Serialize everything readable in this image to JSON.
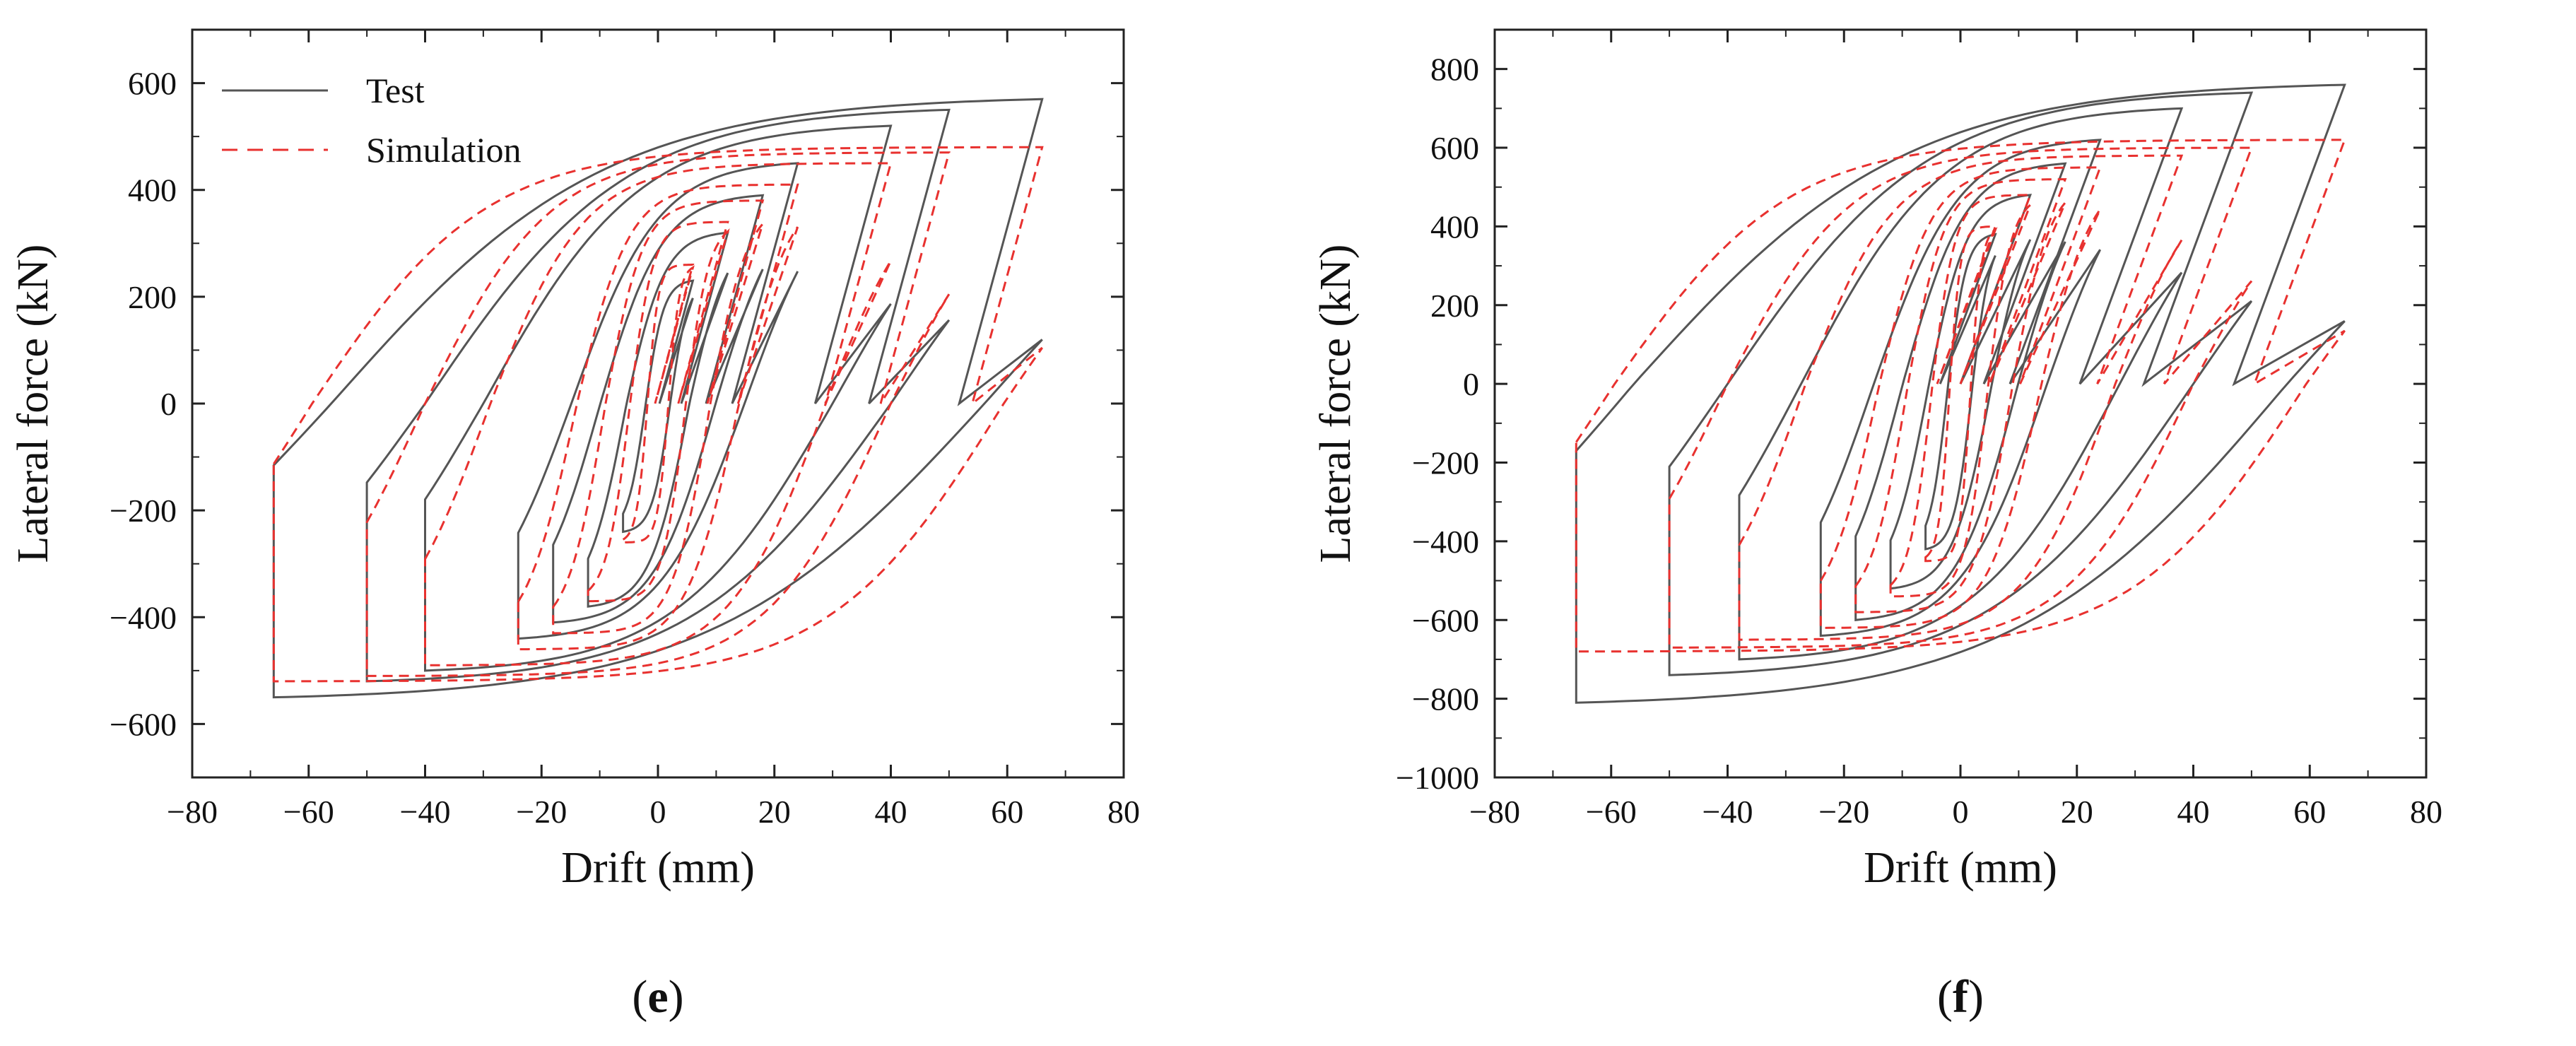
{
  "chart_data": [
    {
      "panel": "(e)",
      "type": "line",
      "xlabel": "Drift (mm)",
      "ylabel": "Lateral force (kN)",
      "xlim": [
        -80,
        80
      ],
      "ylim": [
        -700,
        700
      ],
      "xticks": [
        -80,
        -60,
        -40,
        -20,
        0,
        20,
        40,
        60,
        80
      ],
      "yticks": [
        -600,
        -400,
        -200,
        0,
        200,
        400,
        600
      ],
      "ytick_labels": [
        "−600",
        "−400",
        "−200",
        "0",
        "200",
        "400",
        "600"
      ],
      "xtick_labels": [
        "−80",
        "−60",
        "−40",
        "−20",
        "0",
        "20",
        "40",
        "60",
        "80"
      ],
      "legend": {
        "location": "top-left",
        "entries": [
          "Test",
          "Simulation"
        ]
      },
      "series": [
        {
          "name": "Test",
          "color": "#555555",
          "dash": "solid",
          "loops": [
            {
              "d": 6,
              "p": 230,
              "n": -240,
              "ret": 0.35
            },
            {
              "d": 12,
              "p": 320,
              "n": -380,
              "ret": 0.45
            },
            {
              "d": 18,
              "p": 390,
              "n": -410,
              "ret": 0.55
            },
            {
              "d": 24,
              "p": 450,
              "n": -440,
              "ret": 0.62
            },
            {
              "d": 40,
              "p": 520,
              "n": -500,
              "ret": 0.75
            },
            {
              "d": 50,
              "p": 550,
              "n": -520,
              "ret": 0.8
            },
            {
              "d": 66,
              "p": 570,
              "n": -550,
              "ret": 0.85
            }
          ]
        },
        {
          "name": "Simulation",
          "color": "#e8312f",
          "dash": "dashed",
          "loops": [
            {
              "d": 6,
              "p": 260,
              "n": -260,
              "ret": 0.3
            },
            {
              "d": 12,
              "p": 340,
              "n": -370,
              "ret": 0.4
            },
            {
              "d": 18,
              "p": 380,
              "n": -430,
              "ret": 0.5
            },
            {
              "d": 24,
              "p": 410,
              "n": -460,
              "ret": 0.58
            },
            {
              "d": 40,
              "p": 450,
              "n": -490,
              "ret": 0.72
            },
            {
              "d": 50,
              "p": 470,
              "n": -510,
              "ret": 0.8
            },
            {
              "d": 66,
              "p": 480,
              "n": -520,
              "ret": 0.9
            }
          ]
        }
      ]
    },
    {
      "panel": "(f)",
      "type": "line",
      "xlabel": "Drift (mm)",
      "ylabel": "Lateral force (kN)",
      "xlim": [
        -80,
        80
      ],
      "ylim": [
        -1000,
        900
      ],
      "xticks": [
        -80,
        -60,
        -40,
        -20,
        0,
        20,
        40,
        60,
        80
      ],
      "yticks": [
        -1000,
        -800,
        -600,
        -400,
        -200,
        0,
        200,
        400,
        600,
        800
      ],
      "ytick_labels": [
        "−1000",
        "−800",
        "−600",
        "−400",
        "−200",
        "0",
        "200",
        "400",
        "600",
        "800"
      ],
      "xtick_labels": [
        "−80",
        "−60",
        "−40",
        "−20",
        "0",
        "20",
        "40",
        "60",
        "80"
      ],
      "legend": null,
      "series": [
        {
          "name": "Test",
          "color": "#555555",
          "dash": "solid",
          "loops": [
            {
              "d": 6,
              "p": 380,
              "n": -420,
              "ret": 0.35
            },
            {
              "d": 12,
              "p": 480,
              "n": -520,
              "ret": 0.45
            },
            {
              "d": 18,
              "p": 560,
              "n": -600,
              "ret": 0.55
            },
            {
              "d": 24,
              "p": 620,
              "n": -640,
              "ret": 0.62
            },
            {
              "d": 38,
              "p": 700,
              "n": -700,
              "ret": 0.72
            },
            {
              "d": 50,
              "p": 740,
              "n": -740,
              "ret": 0.8
            },
            {
              "d": 66,
              "p": 760,
              "n": -810,
              "ret": 0.85
            }
          ]
        },
        {
          "name": "Simulation",
          "color": "#e8312f",
          "dash": "dashed",
          "loops": [
            {
              "d": 6,
              "p": 400,
              "n": -450,
              "ret": 0.3
            },
            {
              "d": 12,
              "p": 480,
              "n": -540,
              "ret": 0.4
            },
            {
              "d": 18,
              "p": 520,
              "n": -580,
              "ret": 0.5
            },
            {
              "d": 24,
              "p": 550,
              "n": -620,
              "ret": 0.58
            },
            {
              "d": 38,
              "p": 580,
              "n": -650,
              "ret": 0.7
            },
            {
              "d": 50,
              "p": 600,
              "n": -670,
              "ret": 0.8
            },
            {
              "d": 66,
              "p": 620,
              "n": -680,
              "ret": 0.9
            }
          ]
        }
      ]
    }
  ]
}
